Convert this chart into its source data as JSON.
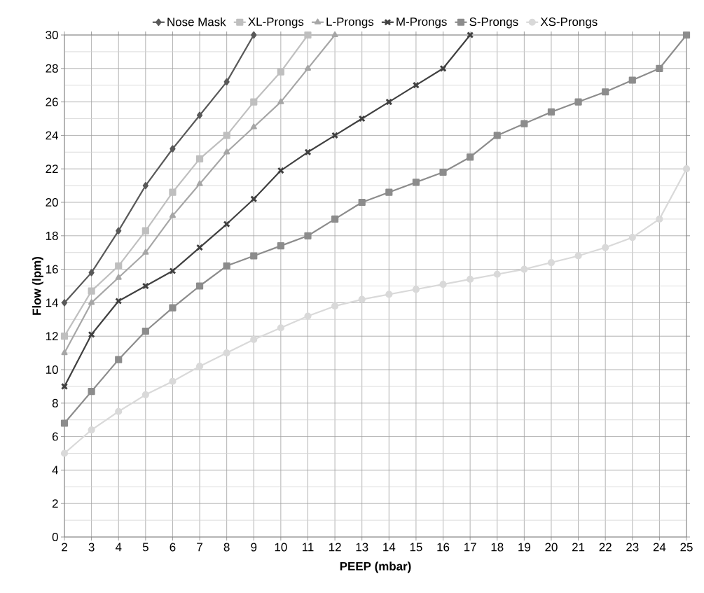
{
  "chart_data": {
    "type": "line",
    "xlabel": "PEEP (mbar)",
    "ylabel": "Flow (lpm)",
    "xlim": [
      2,
      25
    ],
    "xticks": [
      2,
      3,
      4,
      5,
      6,
      7,
      8,
      9,
      10,
      11,
      12,
      13,
      14,
      15,
      16,
      17,
      18,
      19,
      20,
      21,
      22,
      23,
      24,
      25
    ],
    "ylim": [
      0,
      30
    ],
    "yticks": [
      0,
      2,
      4,
      6,
      8,
      10,
      12,
      14,
      16,
      18,
      20,
      22,
      24,
      26,
      28,
      30
    ],
    "grid": true,
    "legend": "top",
    "line_style": "solid",
    "series": [
      {
        "name": "Nose Mask",
        "color": "#595959",
        "marker": "diamond",
        "x": [
          2,
          3,
          4,
          5,
          6,
          7,
          8,
          9
        ],
        "values": [
          14,
          15.8,
          18.3,
          21,
          23.2,
          25.2,
          27.2,
          30
        ]
      },
      {
        "name": "XL-Prongs",
        "color": "#bfbfbf",
        "marker": "square",
        "x": [
          2,
          3,
          4,
          5,
          6,
          7,
          8,
          9,
          10,
          11
        ],
        "values": [
          12,
          14.7,
          16.2,
          18.3,
          20.6,
          22.6,
          24,
          26,
          27.8,
          30
        ]
      },
      {
        "name": "L-Prongs",
        "color": "#a6a6a6",
        "marker": "triangle",
        "x": [
          2,
          3,
          4,
          5,
          6,
          7,
          8,
          9,
          10,
          11,
          12
        ],
        "values": [
          11,
          14,
          15.5,
          17,
          19.2,
          21.1,
          23,
          24.5,
          26,
          28,
          30
        ]
      },
      {
        "name": "M-Prongs",
        "color": "#404040",
        "marker": "cross",
        "x": [
          2,
          3,
          4,
          5,
          6,
          7,
          8,
          9,
          10,
          11,
          12,
          13,
          14,
          15,
          16,
          17
        ],
        "values": [
          9,
          12.1,
          14.1,
          15,
          15.9,
          17.3,
          18.7,
          20.2,
          21.9,
          23,
          24,
          25,
          26,
          27,
          28,
          30
        ]
      },
      {
        "name": "S-Prongs",
        "color": "#8c8c8c",
        "marker": "square",
        "x": [
          2,
          3,
          4,
          5,
          6,
          7,
          8,
          9,
          10,
          11,
          12,
          13,
          14,
          15,
          16,
          17,
          18,
          19,
          20,
          21,
          22,
          23,
          24,
          25
        ],
        "values": [
          6.8,
          8.7,
          10.6,
          12.3,
          13.7,
          15,
          16.2,
          16.8,
          17.4,
          18,
          19,
          20,
          20.6,
          21.2,
          21.8,
          22.7,
          24,
          24.7,
          25.4,
          26,
          26.6,
          27.3,
          28,
          30
        ]
      },
      {
        "name": "XS-Prongs",
        "color": "#d9d9d9",
        "marker": "circle",
        "x": [
          2,
          3,
          4,
          5,
          6,
          7,
          8,
          9,
          10,
          11,
          12,
          13,
          14,
          15,
          16,
          17,
          18,
          19,
          20,
          21,
          22,
          23,
          24,
          25
        ],
        "values": [
          5,
          6.4,
          7.5,
          8.5,
          9.3,
          10.2,
          11,
          11.8,
          12.5,
          13.2,
          13.8,
          14.2,
          14.5,
          14.8,
          15.1,
          15.4,
          15.7,
          16,
          16.4,
          16.8,
          17.3,
          17.9,
          19,
          22
        ]
      }
    ]
  }
}
